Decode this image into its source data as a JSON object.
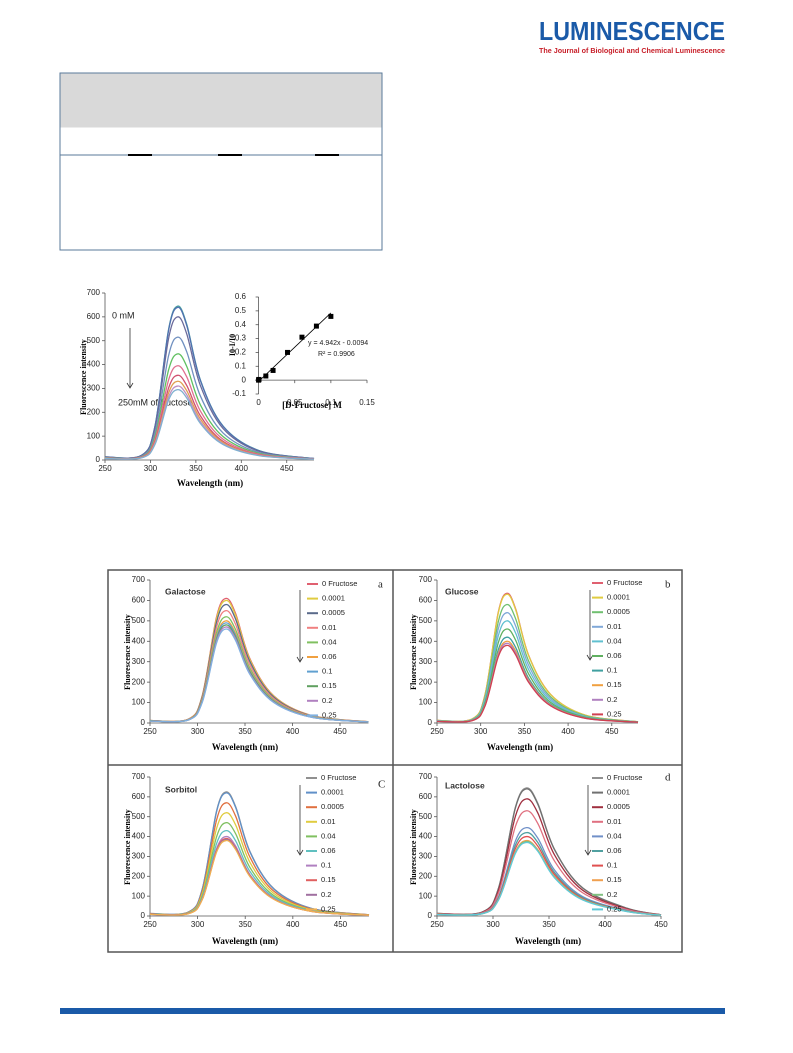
{
  "header": {
    "title": "LUMINESCENCE",
    "subtitle": "The Journal of Biological and Chemical Luminescence"
  },
  "chart_data": [
    {
      "type": "line",
      "xlabel": "Wavelength (nm)",
      "ylabel": "Fluorescence intensity",
      "annotations": [
        "0 mM",
        "250mM of fructose"
      ],
      "x": [
        250,
        290,
        305,
        320,
        330,
        340,
        355,
        380,
        420,
        480
      ],
      "xlim": [
        250,
        480
      ],
      "xticks": [
        250,
        300,
        350,
        400,
        450
      ],
      "ylim": [
        0,
        700
      ],
      "yticks": [
        0,
        100,
        200,
        300,
        400,
        500,
        600,
        700
      ],
      "series": [
        {
          "color": "#4aa0a0",
          "values": [
            13,
            19,
            142,
            548,
            645,
            568,
            335,
            142,
            39,
            6
          ]
        },
        {
          "color": "#5070b0",
          "values": [
            13,
            19,
            141,
            544,
            640,
            563,
            333,
            141,
            38,
            6
          ]
        },
        {
          "color": "#6a6a9a",
          "values": [
            12,
            18,
            132,
            510,
            600,
            528,
            312,
            132,
            36,
            6
          ]
        },
        {
          "color": "#7090c0",
          "values": [
            10,
            15,
            113,
            438,
            515,
            453,
            268,
            113,
            31,
            5
          ]
        },
        {
          "color": "#60c060",
          "values": [
            9,
            13,
            98,
            378,
            445,
            392,
            231,
            98,
            27,
            4
          ]
        },
        {
          "color": "#e07090",
          "values": [
            8,
            12,
            87,
            336,
            395,
            348,
            205,
            87,
            24,
            4
          ]
        },
        {
          "color": "#d05070",
          "values": [
            7,
            11,
            78,
            302,
            355,
            312,
            185,
            78,
            21,
            4
          ]
        },
        {
          "color": "#e0a050",
          "values": [
            7,
            10,
            73,
            281,
            330,
            290,
            172,
            73,
            20,
            3
          ]
        },
        {
          "color": "#c090c0",
          "values": [
            6,
            9,
            68,
            264,
            310,
            273,
            161,
            68,
            19,
            3
          ]
        },
        {
          "color": "#80b0d0",
          "values": [
            6,
            9,
            65,
            251,
            295,
            260,
            153,
            65,
            18,
            3
          ]
        }
      ]
    },
    {
      "type": "scatter",
      "xlabel": "[D-Fructose] M",
      "ylabel": "I0-I/I0",
      "x": [
        0,
        0.0001,
        0.0005,
        0.01,
        0.02,
        0.04,
        0.06,
        0.08,
        0.1
      ],
      "values": [
        0,
        0.003,
        0.005,
        0.03,
        0.07,
        0.2,
        0.31,
        0.39,
        0.46
      ],
      "color": "#000000",
      "xlim": [
        -0.005,
        0.15
      ],
      "xticks": [
        0,
        0.05,
        0.1,
        0.15
      ],
      "ylim": [
        -0.1,
        0.6
      ],
      "yticks": [
        -0.1,
        0,
        0.1,
        0.2,
        0.3,
        0.4,
        0.5,
        0.6
      ],
      "trendline": {
        "equation": "y = 4.942x - 0.0094",
        "slope": 4.942,
        "intercept": -0.0094,
        "r_squared": "R² = 0.9906"
      }
    },
    {
      "type": "line",
      "title": "Galactose",
      "panel_label": "a",
      "xlabel": "Wavelength  (nm)",
      "ylabel": "Fluorescence intensity",
      "x": [
        250,
        290,
        305,
        320,
        330,
        340,
        355,
        380,
        420,
        480
      ],
      "xlim": [
        250,
        480
      ],
      "xticks": [
        250,
        300,
        350,
        400,
        450
      ],
      "ylim": [
        0,
        700
      ],
      "yticks": [
        0,
        100,
        200,
        300,
        400,
        500,
        600,
        700
      ],
      "series": [
        {
          "name": "0 Fructose",
          "color": "#e06070",
          "values": [
            12,
            18,
            134,
            519,
            610,
            537,
            317,
            134,
            37,
            6
          ]
        },
        {
          "name": "0.0001",
          "color": "#e0cc40",
          "values": [
            12,
            18,
            132,
            510,
            600,
            528,
            312,
            132,
            36,
            6
          ]
        },
        {
          "name": "0.0005",
          "color": "#5a6a8a",
          "values": [
            12,
            17,
            128,
            493,
            580,
            510,
            302,
            128,
            35,
            6
          ]
        },
        {
          "name": "0.01",
          "color": "#f08080",
          "values": [
            11,
            17,
            121,
            468,
            550,
            484,
            286,
            121,
            33,
            6
          ]
        },
        {
          "name": "0.04",
          "color": "#80c060",
          "values": [
            10,
            16,
            114,
            442,
            520,
            458,
            270,
            114,
            31,
            5
          ]
        },
        {
          "name": "0.06",
          "color": "#f0a040",
          "values": [
            10,
            15,
            110,
            425,
            500,
            440,
            260,
            110,
            30,
            5
          ]
        },
        {
          "name": "0.1",
          "color": "#60a0d0",
          "values": [
            10,
            15,
            108,
            417,
            490,
            431,
            255,
            108,
            29,
            5
          ]
        },
        {
          "name": "0.15",
          "color": "#60a060",
          "values": [
            10,
            14,
            106,
            408,
            480,
            422,
            250,
            106,
            29,
            5
          ]
        },
        {
          "name": "0.2",
          "color": "#b080c0",
          "values": [
            9,
            14,
            103,
            400,
            470,
            414,
            244,
            103,
            28,
            5
          ]
        },
        {
          "name": "0.25",
          "color": "#80b0e0",
          "values": [
            9,
            14,
            101,
            391,
            460,
            405,
            239,
            101,
            28,
            5
          ]
        }
      ]
    },
    {
      "type": "line",
      "title": "Glucose",
      "panel_label": "b",
      "xlabel": "Wavelength  (nm)",
      "ylabel": "Fluorescence intensity",
      "x": [
        250,
        290,
        305,
        320,
        330,
        340,
        355,
        380,
        420,
        480
      ],
      "xlim": [
        250,
        480
      ],
      "xticks": [
        250,
        300,
        350,
        400,
        450
      ],
      "ylim": [
        0,
        700
      ],
      "yticks": [
        0,
        100,
        200,
        300,
        400,
        500,
        600,
        700
      ],
      "series": [
        {
          "name": "0 Fructose",
          "color": "#e06070",
          "values": [
            13,
            19,
            140,
            540,
            635,
            559,
            330,
            140,
            38,
            6
          ]
        },
        {
          "name": "0.0001",
          "color": "#e0cc40",
          "values": [
            13,
            19,
            139,
            536,
            630,
            554,
            328,
            139,
            38,
            6
          ]
        },
        {
          "name": "0.0005",
          "color": "#70c070",
          "values": [
            12,
            17,
            128,
            493,
            580,
            510,
            302,
            128,
            35,
            6
          ]
        },
        {
          "name": "0.01",
          "color": "#80a8d8",
          "values": [
            11,
            16,
            119,
            459,
            540,
            475,
            281,
            119,
            32,
            5
          ]
        },
        {
          "name": "0.04",
          "color": "#60c0d0",
          "values": [
            10,
            15,
            110,
            425,
            500,
            440,
            260,
            110,
            30,
            5
          ]
        },
        {
          "name": "0.06",
          "color": "#60b060",
          "values": [
            9,
            14,
            101,
            391,
            460,
            405,
            239,
            101,
            28,
            5
          ]
        },
        {
          "name": "0.1",
          "color": "#40a0a0",
          "values": [
            8,
            13,
            92,
            357,
            420,
            370,
            218,
            92,
            25,
            4
          ]
        },
        {
          "name": "0.15",
          "color": "#f0a040",
          "values": [
            8,
            12,
            88,
            340,
            400,
            352,
            208,
            88,
            24,
            4
          ]
        },
        {
          "name": "0.2",
          "color": "#b080c0",
          "values": [
            8,
            12,
            86,
            332,
            390,
            343,
            203,
            86,
            23,
            4
          ]
        },
        {
          "name": "0.25",
          "color": "#d04050",
          "values": [
            8,
            11,
            84,
            323,
            380,
            334,
            198,
            84,
            23,
            4
          ]
        }
      ]
    },
    {
      "type": "line",
      "title": "Sorbitol",
      "panel_label": "C",
      "xlabel": "Wavelength  (nm)",
      "ylabel": "Fluorescence intensity",
      "x": [
        250,
        290,
        305,
        320,
        330,
        340,
        355,
        380,
        420,
        480
      ],
      "xlim": [
        250,
        480
      ],
      "xticks": [
        250,
        300,
        350,
        400,
        450
      ],
      "ylim": [
        0,
        700
      ],
      "yticks": [
        0,
        100,
        200,
        300,
        400,
        500,
        600,
        700
      ],
      "series": [
        {
          "name": "0 Fructose",
          "color": "#909090",
          "values": [
            13,
            19,
            138,
            531,
            625,
            550,
            325,
            138,
            38,
            6
          ]
        },
        {
          "name": "0.0001",
          "color": "#6090c8",
          "values": [
            12,
            19,
            136,
            527,
            620,
            546,
            322,
            136,
            37,
            6
          ]
        },
        {
          "name": "0.0005",
          "color": "#e07040",
          "values": [
            11,
            17,
            125,
            485,
            570,
            502,
            296,
            125,
            34,
            6
          ]
        },
        {
          "name": "0.01",
          "color": "#e0cc40",
          "values": [
            10,
            16,
            114,
            442,
            520,
            458,
            270,
            114,
            31,
            5
          ]
        },
        {
          "name": "0.04",
          "color": "#80c060",
          "values": [
            9,
            14,
            103,
            400,
            470,
            414,
            244,
            103,
            28,
            5
          ]
        },
        {
          "name": "0.06",
          "color": "#60c0c0",
          "values": [
            9,
            13,
            95,
            366,
            430,
            378,
            224,
            95,
            26,
            4
          ]
        },
        {
          "name": "0.1",
          "color": "#b080c0",
          "values": [
            8,
            12,
            88,
            340,
            400,
            352,
            208,
            88,
            24,
            4
          ]
        },
        {
          "name": "0.15",
          "color": "#e06060",
          "values": [
            8,
            12,
            86,
            332,
            390,
            343,
            203,
            86,
            23,
            4
          ]
        },
        {
          "name": "0.2",
          "color": "#a070a0",
          "values": [
            8,
            12,
            85,
            327,
            385,
            339,
            200,
            85,
            23,
            4
          ]
        },
        {
          "name": "0.25",
          "color": "#f0b050",
          "values": [
            8,
            11,
            84,
            323,
            380,
            334,
            198,
            84,
            23,
            4
          ]
        }
      ]
    },
    {
      "type": "line",
      "title": "Lactolose",
      "panel_label": "d",
      "xlabel": "Wavelength  (nm)",
      "ylabel": "Fluorescence intensity",
      "x": [
        250,
        290,
        305,
        320,
        330,
        340,
        355,
        380,
        420,
        450
      ],
      "xlim": [
        250,
        450
      ],
      "xticks": [
        250,
        300,
        350,
        400,
        450
      ],
      "ylim": [
        0,
        700
      ],
      "yticks": [
        0,
        100,
        200,
        300,
        400,
        500,
        600,
        700
      ],
      "series": [
        {
          "name": "0 Fructose",
          "color": "#909090",
          "values": [
            13,
            19,
            142,
            548,
            645,
            568,
            335,
            142,
            39,
            6
          ]
        },
        {
          "name": "0.0001",
          "color": "#707070",
          "values": [
            13,
            19,
            141,
            544,
            640,
            563,
            333,
            141,
            38,
            6
          ]
        },
        {
          "name": "0.0005",
          "color": "#a03040",
          "values": [
            12,
            18,
            130,
            502,
            590,
            519,
            307,
            130,
            35,
            6
          ]
        },
        {
          "name": "0.01",
          "color": "#e07080",
          "values": [
            11,
            16,
            117,
            451,
            530,
            466,
            276,
            117,
            32,
            5
          ]
        },
        {
          "name": "0.04",
          "color": "#7090c8",
          "values": [
            9,
            13,
            98,
            378,
            445,
            392,
            231,
            98,
            27,
            4
          ]
        },
        {
          "name": "0.06",
          "color": "#50a0a0",
          "values": [
            8,
            13,
            92,
            357,
            420,
            370,
            218,
            92,
            25,
            4
          ]
        },
        {
          "name": "0.1",
          "color": "#e05050",
          "values": [
            8,
            12,
            88,
            340,
            400,
            352,
            208,
            88,
            24,
            4
          ]
        },
        {
          "name": "0.15",
          "color": "#f0a050",
          "values": [
            8,
            11,
            84,
            323,
            380,
            334,
            198,
            84,
            23,
            4
          ]
        },
        {
          "name": "0.2",
          "color": "#80c080",
          "values": [
            8,
            11,
            83,
            319,
            375,
            330,
            195,
            83,
            23,
            4
          ]
        },
        {
          "name": "0.25",
          "color": "#60c8d8",
          "values": [
            7,
            11,
            81,
            315,
            370,
            326,
            192,
            81,
            22,
            4
          ]
        }
      ]
    }
  ]
}
